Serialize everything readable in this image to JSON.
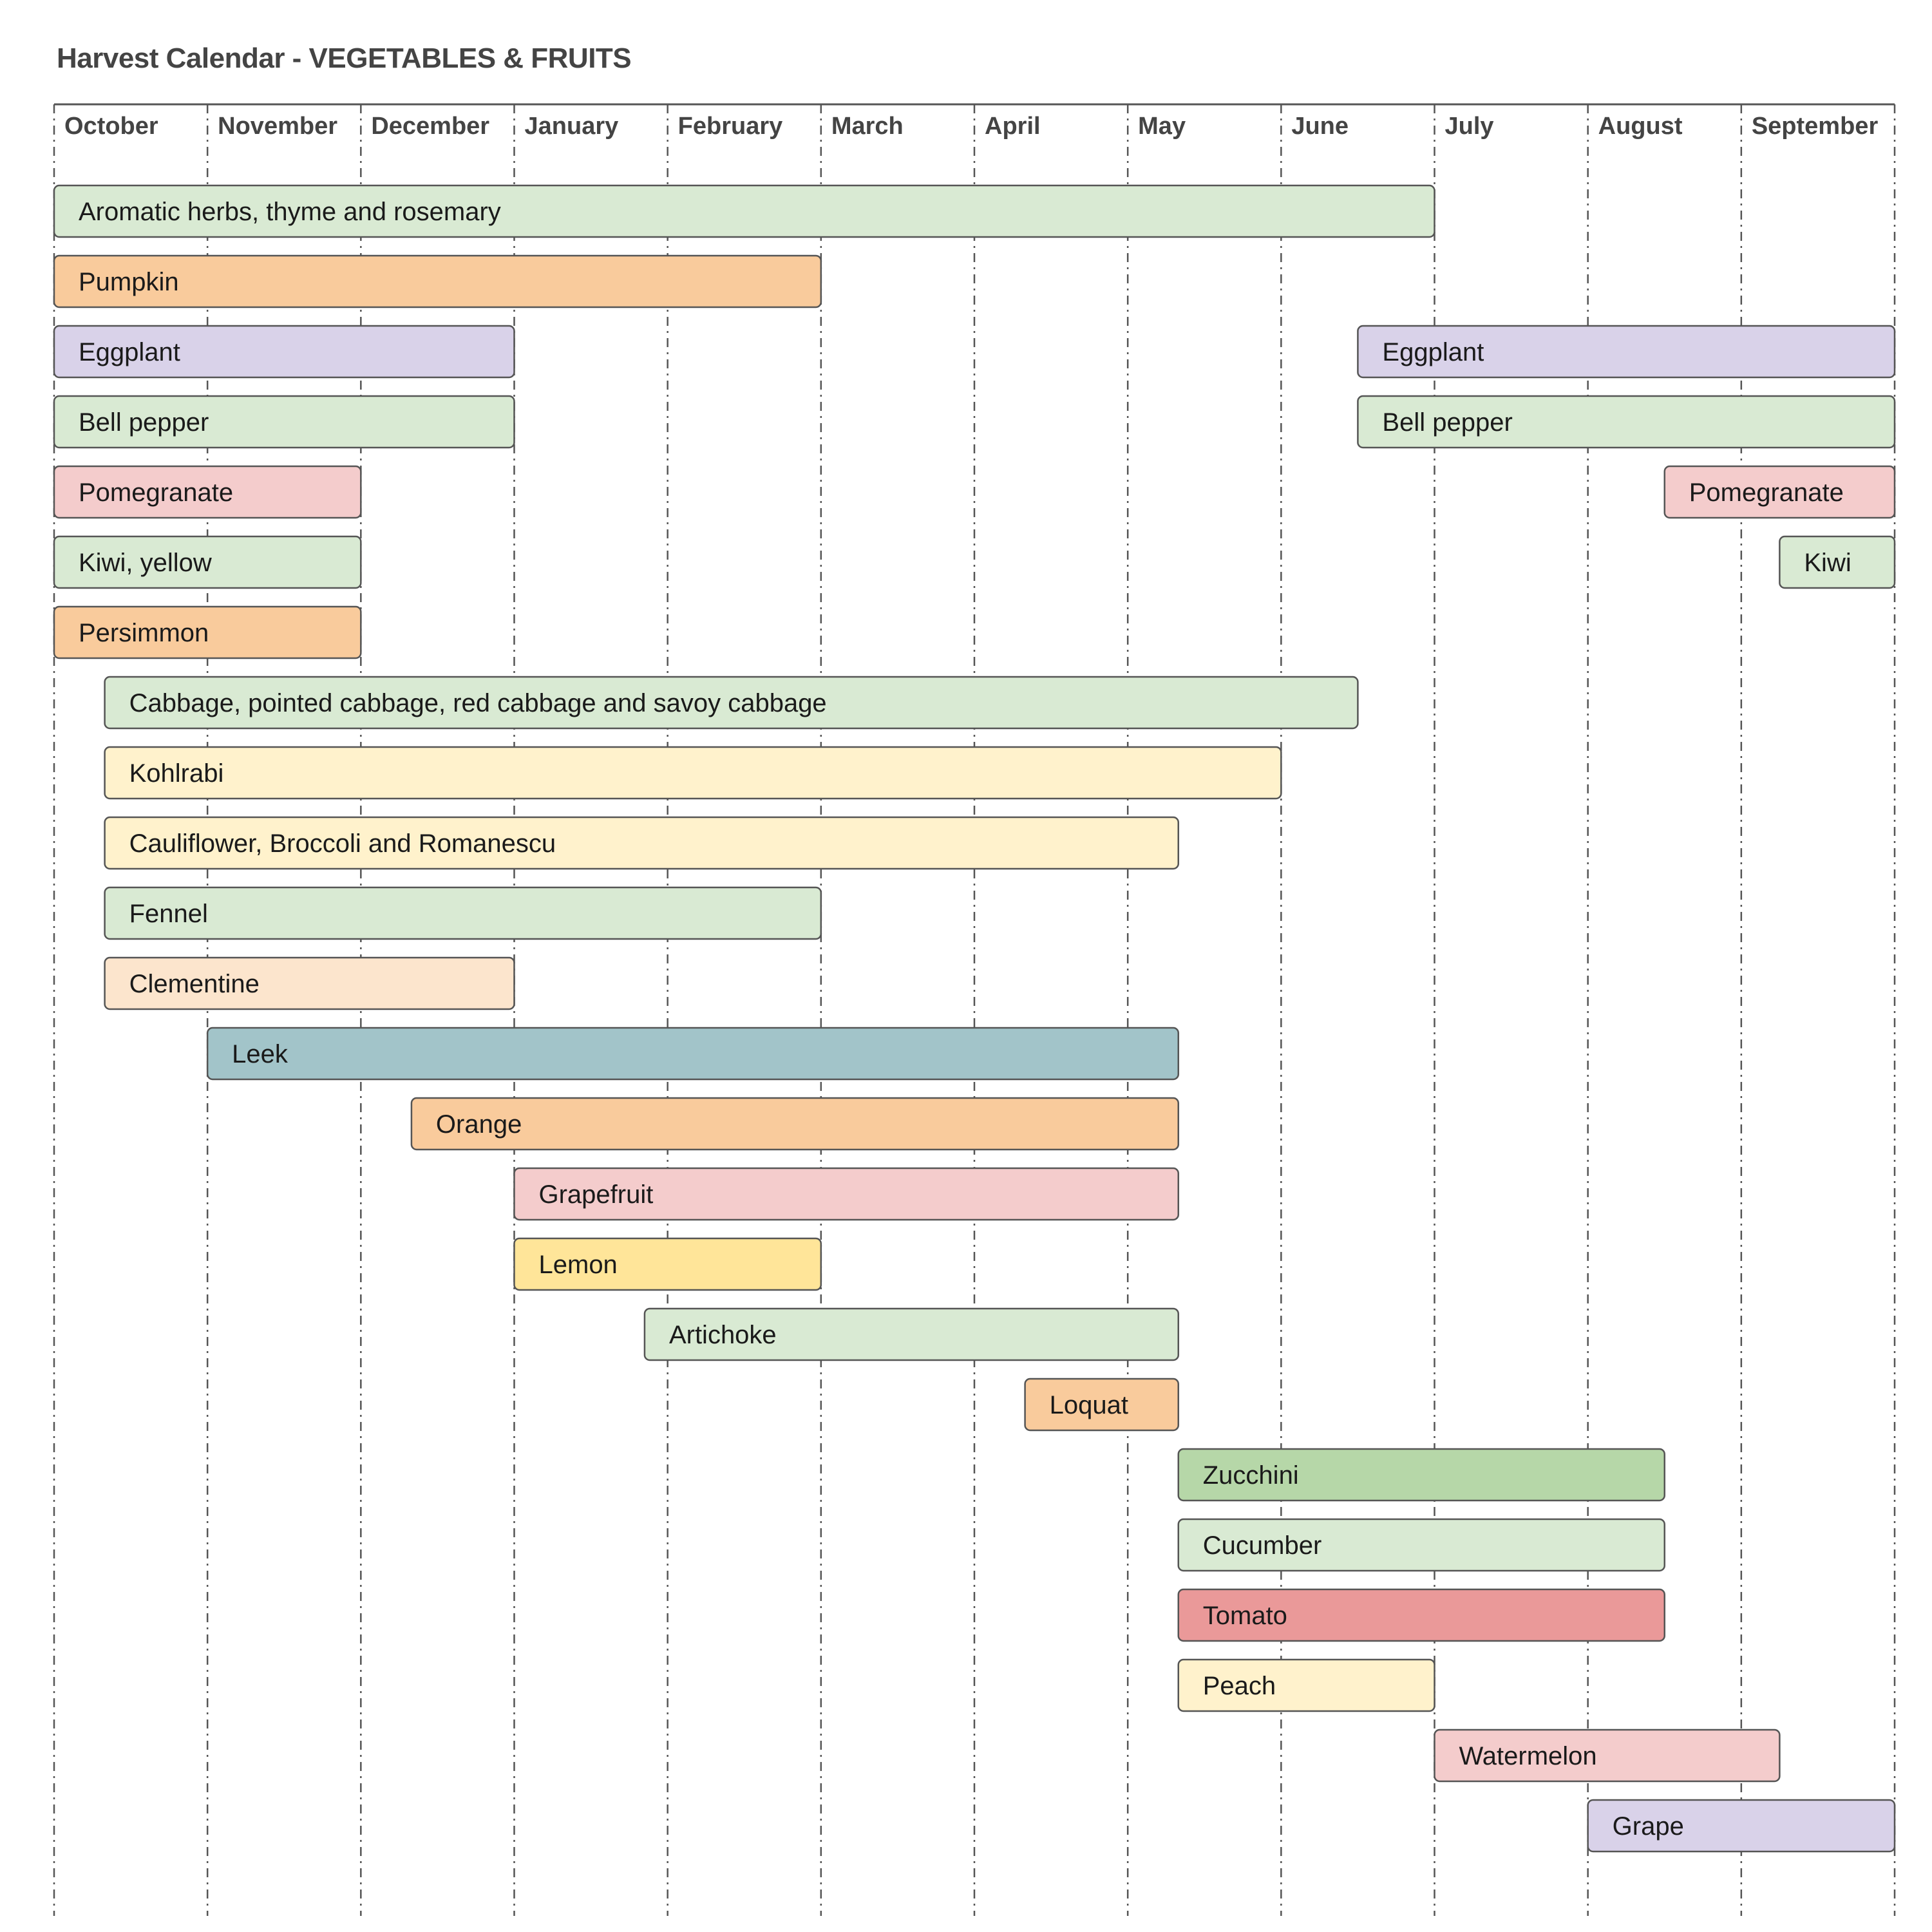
{
  "title": "Harvest Calendar - VEGETABLES & FRUITS",
  "months": [
    "October",
    "November",
    "December",
    "January",
    "February",
    "March",
    "April",
    "May",
    "June",
    "July",
    "August",
    "September"
  ],
  "rows": [
    {
      "segments": [
        {
          "label": "Aromatic herbs, thyme and rosemary",
          "start": 0,
          "end": 9,
          "color": "#d9ead3"
        }
      ]
    },
    {
      "segments": [
        {
          "label": "Pumpkin",
          "start": 0,
          "end": 5,
          "color": "#f9cb9c"
        }
      ]
    },
    {
      "segments": [
        {
          "label": "Eggplant",
          "start": 0,
          "end": 3,
          "color": "#d9d2e9"
        },
        {
          "label": "Eggplant",
          "start": 8.5,
          "end": 12,
          "color": "#d9d2e9"
        }
      ]
    },
    {
      "segments": [
        {
          "label": "Bell pepper",
          "start": 0,
          "end": 3,
          "color": "#d9ead3"
        },
        {
          "label": "Bell pepper",
          "start": 8.5,
          "end": 12,
          "color": "#d9ead3"
        }
      ]
    },
    {
      "segments": [
        {
          "label": "Pomegranate",
          "start": 0,
          "end": 2,
          "color": "#f4cccc"
        },
        {
          "label": "Pomegranate",
          "start": 10.5,
          "end": 12,
          "color": "#f4cccc"
        }
      ]
    },
    {
      "segments": [
        {
          "label": "Kiwi, yellow",
          "start": 0,
          "end": 2,
          "color": "#d9ead3"
        },
        {
          "label": "Kiwi",
          "start": 11.25,
          "end": 12,
          "color": "#d9ead3"
        }
      ]
    },
    {
      "segments": [
        {
          "label": "Persimmon",
          "start": 0,
          "end": 2,
          "color": "#f9cb9c"
        }
      ]
    },
    {
      "segments": [
        {
          "label": "Cabbage, pointed cabbage, red cabbage and savoy cabbage",
          "start": 0.33,
          "end": 8.5,
          "color": "#d9ead3"
        }
      ]
    },
    {
      "segments": [
        {
          "label": "Kohlrabi",
          "start": 0.33,
          "end": 8,
          "color": "#fff2cc"
        }
      ]
    },
    {
      "segments": [
        {
          "label": "Cauliflower, Broccoli and Romanescu",
          "start": 0.33,
          "end": 7.33,
          "color": "#fff2cc"
        }
      ]
    },
    {
      "segments": [
        {
          "label": "Fennel",
          "start": 0.33,
          "end": 5,
          "color": "#d9ead3"
        }
      ]
    },
    {
      "segments": [
        {
          "label": "Clementine",
          "start": 0.33,
          "end": 3,
          "color": "#fce5cd"
        }
      ]
    },
    {
      "segments": [
        {
          "label": "Leek",
          "start": 1,
          "end": 7.33,
          "color": "#a2c4c9"
        }
      ]
    },
    {
      "segments": [
        {
          "label": "Orange",
          "start": 2.33,
          "end": 7.33,
          "color": "#f9cb9c"
        }
      ]
    },
    {
      "segments": [
        {
          "label": "Grapefruit",
          "start": 3,
          "end": 7.33,
          "color": "#f4cccc"
        }
      ]
    },
    {
      "segments": [
        {
          "label": "Lemon",
          "start": 3,
          "end": 5,
          "color": "#ffe599"
        }
      ]
    },
    {
      "segments": [
        {
          "label": "Artichoke",
          "start": 3.85,
          "end": 7.33,
          "color": "#d9ead3"
        }
      ]
    },
    {
      "segments": [
        {
          "label": "Loquat",
          "start": 6.33,
          "end": 7.33,
          "color": "#f9cb9c"
        }
      ]
    },
    {
      "segments": [
        {
          "label": "Zucchini",
          "start": 7.33,
          "end": 10.5,
          "color": "#b6d7a8"
        }
      ]
    },
    {
      "segments": [
        {
          "label": "Cucumber",
          "start": 7.33,
          "end": 10.5,
          "color": "#d9ead3"
        }
      ]
    },
    {
      "segments": [
        {
          "label": "Tomato",
          "start": 7.33,
          "end": 10.5,
          "color": "#ea9999"
        }
      ]
    },
    {
      "segments": [
        {
          "label": "Peach",
          "start": 7.33,
          "end": 9,
          "color": "#fff2cc"
        }
      ]
    },
    {
      "segments": [
        {
          "label": "Watermelon",
          "start": 9,
          "end": 11.25,
          "color": "#f4cccc"
        }
      ]
    },
    {
      "segments": [
        {
          "label": "Grape",
          "start": 10,
          "end": 12,
          "color": "#d9d2e9"
        }
      ]
    }
  ],
  "colors": {
    "outline": "#555555",
    "gridline": "#555555",
    "title_text": "#444444"
  }
}
